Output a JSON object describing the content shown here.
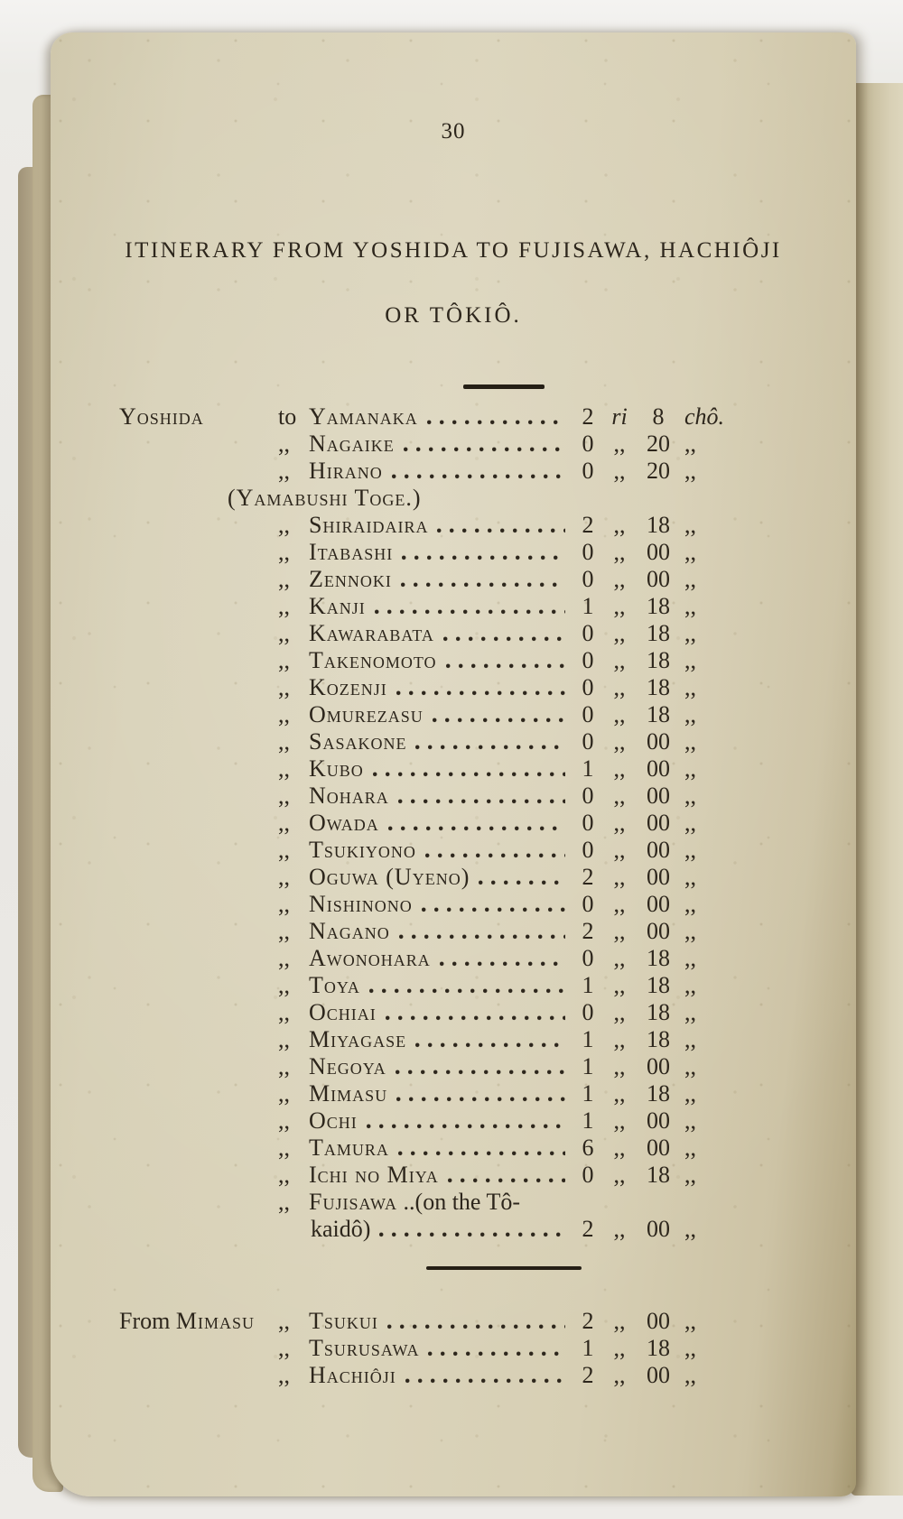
{
  "page": {
    "number": "30",
    "title_line1": "ITINERARY FROM YOSHIDA TO FUJISAWA, HACHIÔJI",
    "title_line2": "OR TÔKIÔ."
  },
  "itinerary": {
    "sections": [
      {
        "rows": [
          {
            "from": "Yoshida",
            "conn": "to",
            "name": "Yamanaka",
            "ri": "2",
            "ri_sep": "ri",
            "cho": "8",
            "cho_unit": "chô."
          },
          {
            "conn": ",,",
            "name": "Nagaike",
            "ri": "0",
            "ri_sep": ",,",
            "cho": "20",
            "cho_unit": ",,"
          },
          {
            "conn": ",,",
            "name": "Hirano",
            "ri": "0",
            "ri_sep": ",,",
            "cho": "20",
            "cho_unit": ",,"
          },
          {
            "type": "note",
            "text": "(Yamabushi Toge.)"
          },
          {
            "conn": ",,",
            "name": "Shiraidaira",
            "ri": "2",
            "ri_sep": ",,",
            "cho": "18",
            "cho_unit": ",,"
          },
          {
            "conn": ",,",
            "name": "Itabashi",
            "ri": "0",
            "ri_sep": ",,",
            "cho": "00",
            "cho_unit": ",,"
          },
          {
            "conn": ",,",
            "name": "Zennoki",
            "ri": "0",
            "ri_sep": ",,",
            "cho": "00",
            "cho_unit": ",,"
          },
          {
            "conn": ",,",
            "name": "Kanji",
            "ri": "1",
            "ri_sep": ",,",
            "cho": "18",
            "cho_unit": ",,"
          },
          {
            "conn": ",,",
            "name": "Kawarabata",
            "ri": "0",
            "ri_sep": ",,",
            "cho": "18",
            "cho_unit": ",,"
          },
          {
            "conn": ",,",
            "name": "Takenomoto",
            "ri": "0",
            "ri_sep": ",,",
            "cho": "18",
            "cho_unit": ",,"
          },
          {
            "conn": ",,",
            "name": "Kozenji",
            "ri": "0",
            "ri_sep": ",,",
            "cho": "18",
            "cho_unit": ",,"
          },
          {
            "conn": ",,",
            "name": "Omurezasu",
            "ri": "0",
            "ri_sep": ",,",
            "cho": "18",
            "cho_unit": ",,"
          },
          {
            "conn": ",,",
            "name": "Sasakone",
            "ri": "0",
            "ri_sep": ",,",
            "cho": "00",
            "cho_unit": ",,"
          },
          {
            "conn": ",,",
            "name": "Kubo",
            "ri": "1",
            "ri_sep": ",,",
            "cho": "00",
            "cho_unit": ",,"
          },
          {
            "conn": ",,",
            "name": "Nohara",
            "ri": "0",
            "ri_sep": ",,",
            "cho": "00",
            "cho_unit": ",,"
          },
          {
            "conn": ",,",
            "name": "Owada",
            "ri": "0",
            "ri_sep": ",,",
            "cho": "00",
            "cho_unit": ",,"
          },
          {
            "conn": ",,",
            "name": "Tsukiyono",
            "ri": "0",
            "ri_sep": ",,",
            "cho": "00",
            "cho_unit": ",,"
          },
          {
            "conn": ",,",
            "name": "Oguwa (Uyeno)",
            "ri": "2",
            "ri_sep": ",,",
            "cho": "00",
            "cho_unit": ",,"
          },
          {
            "conn": ",,",
            "name": "Nishinono",
            "ri": "0",
            "ri_sep": ",,",
            "cho": "00",
            "cho_unit": ",,"
          },
          {
            "conn": ",,",
            "name": "Nagano",
            "ri": "2",
            "ri_sep": ",,",
            "cho": "00",
            "cho_unit": ",,"
          },
          {
            "conn": ",,",
            "name": "Awonohara",
            "ri": "0",
            "ri_sep": ",,",
            "cho": "18",
            "cho_unit": ",,"
          },
          {
            "conn": ",,",
            "name": "Toya",
            "ri": "1",
            "ri_sep": ",,",
            "cho": "18",
            "cho_unit": ",,"
          },
          {
            "conn": ",,",
            "name": "Ochiai",
            "ri": "0",
            "ri_sep": ",,",
            "cho": "18",
            "cho_unit": ",,"
          },
          {
            "conn": ",,",
            "name": "Miyagase",
            "ri": "1",
            "ri_sep": ",,",
            "cho": "18",
            "cho_unit": ",,"
          },
          {
            "conn": ",,",
            "name": "Negoya",
            "ri": "1",
            "ri_sep": ",,",
            "cho": "00",
            "cho_unit": ",,"
          },
          {
            "conn": ",,",
            "name": "Mimasu",
            "ri": "1",
            "ri_sep": ",,",
            "cho": "18",
            "cho_unit": ",,"
          },
          {
            "conn": ",,",
            "name": "Ochi",
            "ri": "1",
            "ri_sep": ",,",
            "cho": "00",
            "cho_unit": ",,"
          },
          {
            "conn": ",,",
            "name": "Tamura",
            "ri": "6",
            "ri_sep": ",,",
            "cho": "00",
            "cho_unit": ",,"
          },
          {
            "conn": ",,",
            "name": "Ichi no Miya",
            "ri": "0",
            "ri_sep": ",,",
            "cho": "18",
            "cho_unit": ",,"
          },
          {
            "conn": ",,",
            "name": "Fujisawa",
            "name_suffix": " ..(on the Tô-",
            "no_leader": true,
            "ri": "",
            "ri_sep": "",
            "cho": "",
            "cho_unit": ""
          },
          {
            "type": "cont",
            "text": "kaidô)",
            "ri": "2",
            "ri_sep": ",,",
            "cho": "00",
            "cho_unit": ",,"
          }
        ]
      },
      {
        "rows": [
          {
            "from_prefix": "From ",
            "from": "Mimasu",
            "conn": ",,",
            "name": "Tsukui",
            "ri": "2",
            "ri_sep": ",,",
            "cho": "00",
            "cho_unit": ",,"
          },
          {
            "conn": ",,",
            "name": "Tsurusawa",
            "ri": "1",
            "ri_sep": ",,",
            "cho": "18",
            "cho_unit": ",,"
          },
          {
            "conn": ",,",
            "name": "Hachiôji",
            "ri": "2",
            "ri_sep": ",,",
            "cho": "00",
            "cho_unit": ",,"
          }
        ]
      }
    ]
  }
}
